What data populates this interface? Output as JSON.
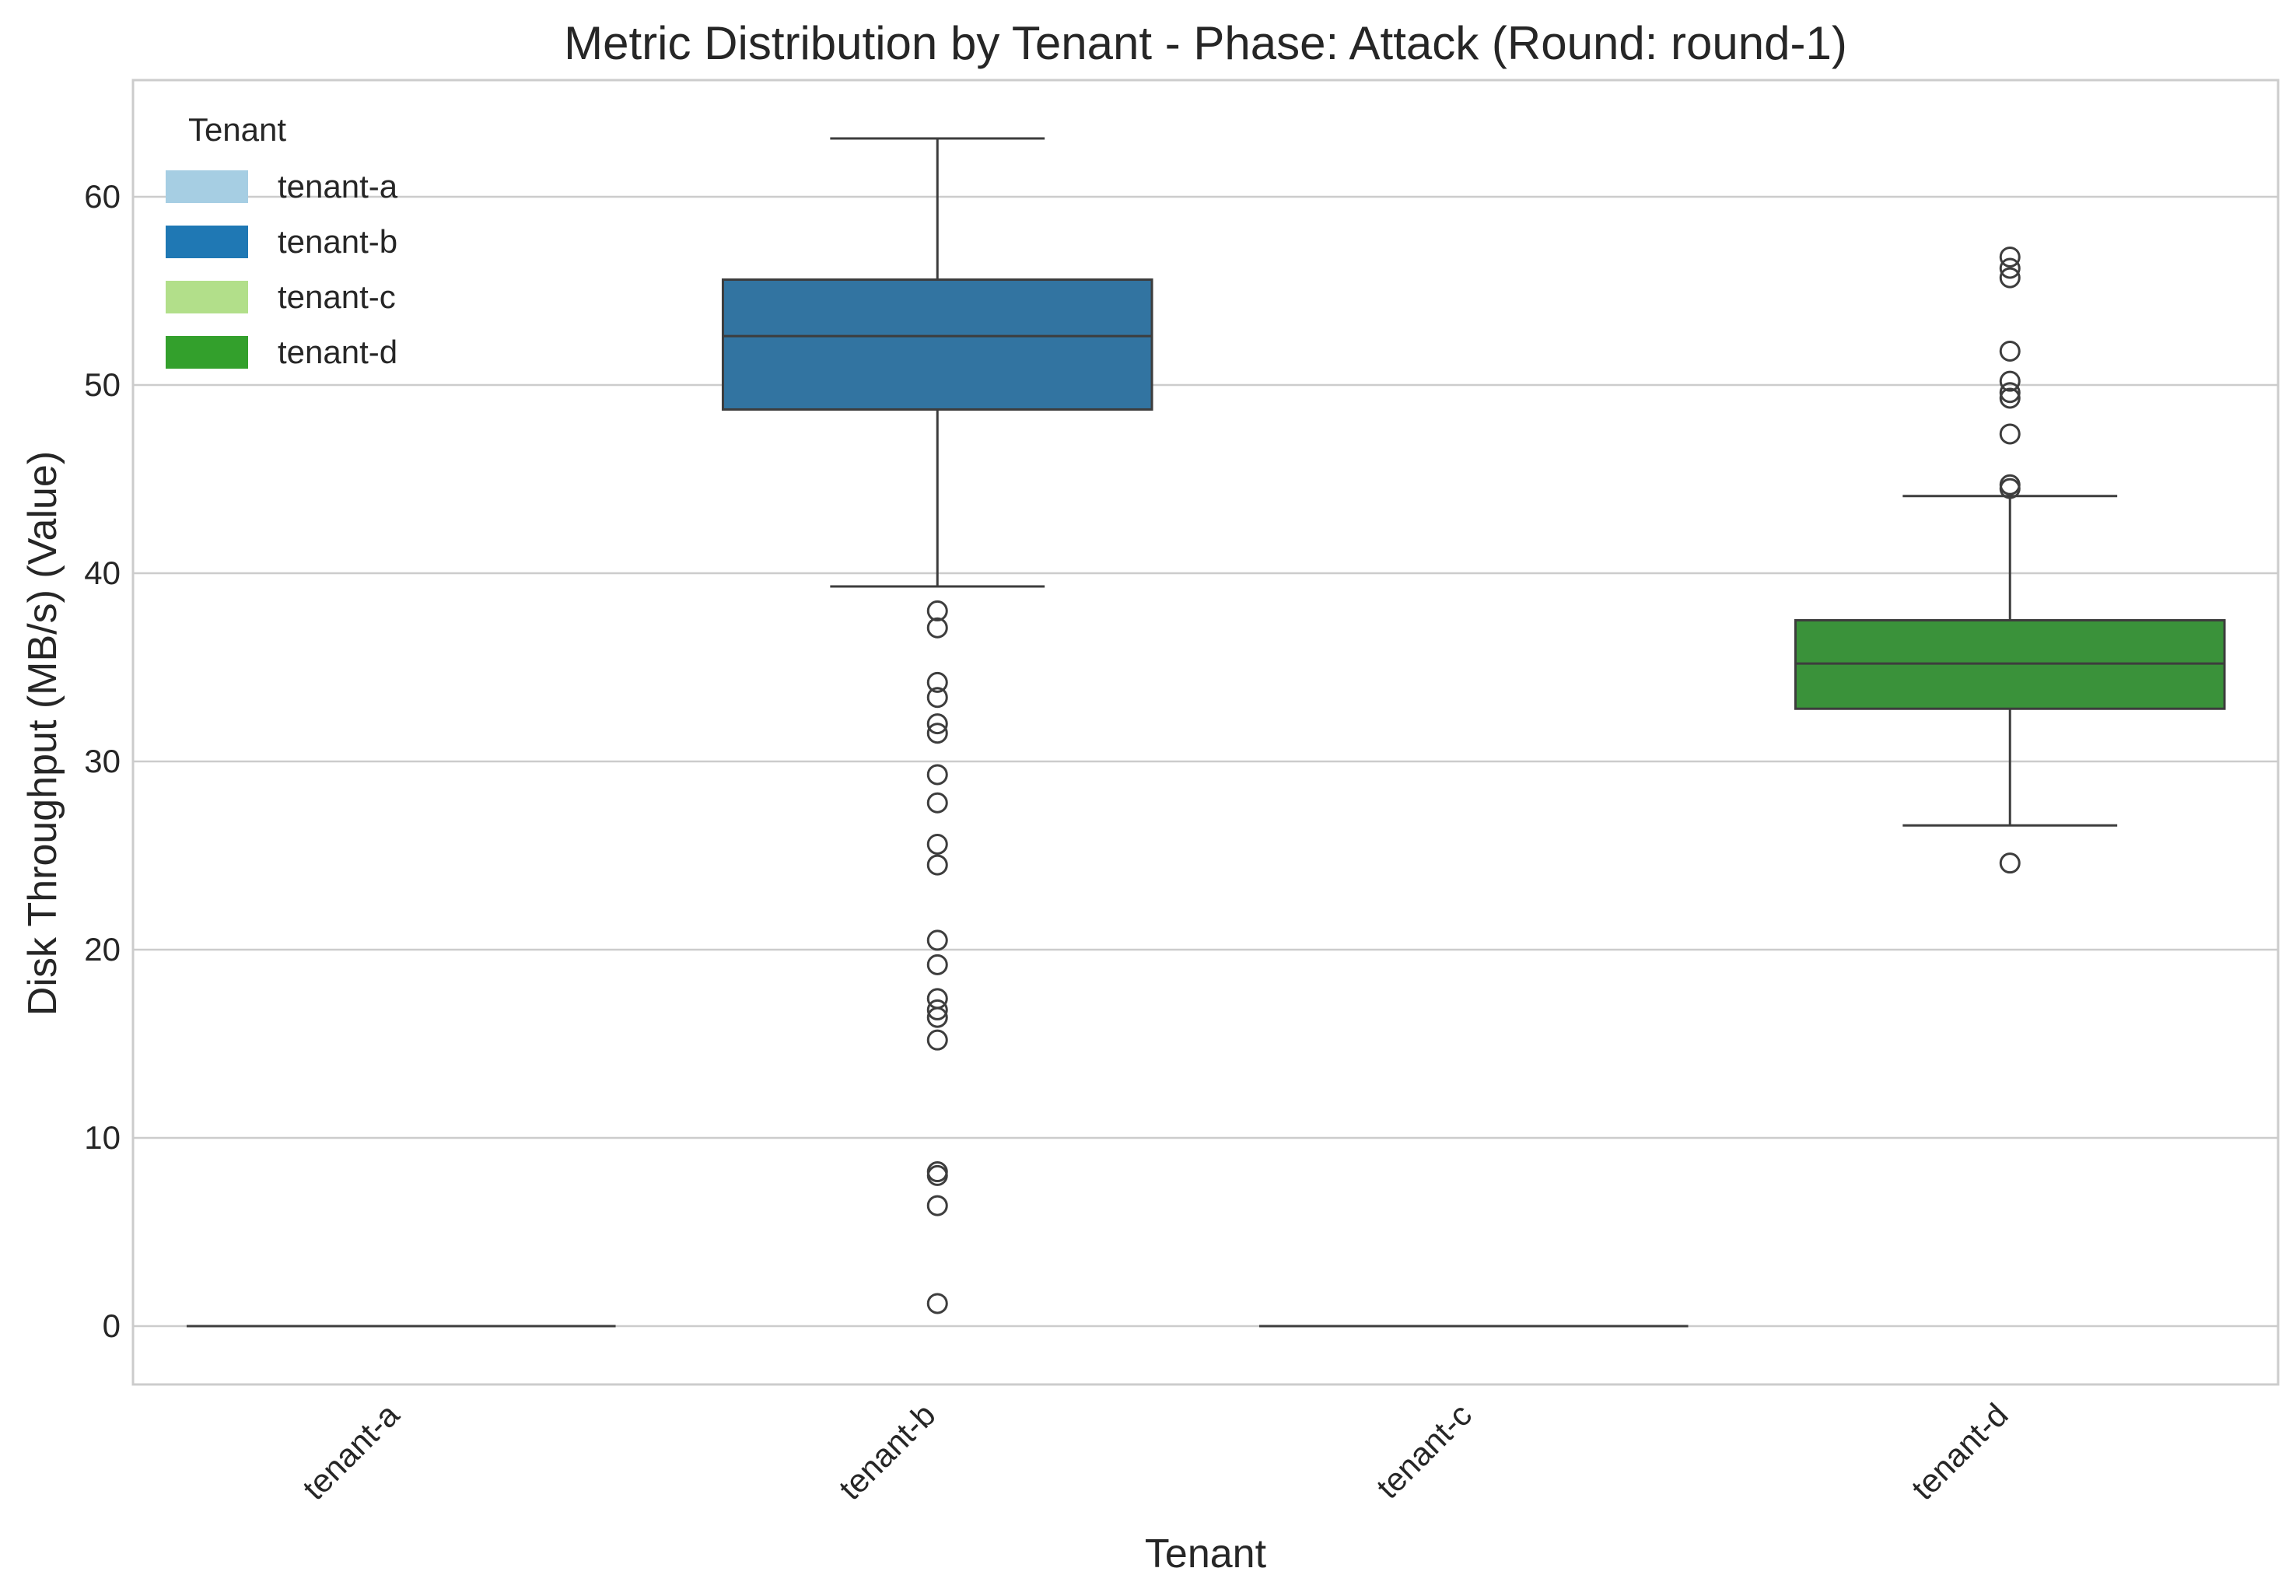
{
  "chart_data": {
    "type": "box",
    "title": "Metric Distribution by Tenant - Phase: Attack (Round: round-1)",
    "xlabel": "Tenant",
    "ylabel": "Disk Throughput (MB/s) (Value)",
    "ylim": [
      -3.1,
      66.2
    ],
    "yticks": [
      0,
      10,
      20,
      30,
      40,
      50,
      60
    ],
    "grid": true,
    "legend": {
      "title": "Tenant",
      "placement": "top-left"
    },
    "categories": [
      "tenant-a",
      "tenant-b",
      "tenant-c",
      "tenant-d"
    ],
    "series": [
      {
        "name": "tenant-a",
        "color": "#a6cee3",
        "box": {
          "whisker_low": 0,
          "q1": 0,
          "median": 0,
          "q3": 0,
          "whisker_high": 0
        },
        "outliers": []
      },
      {
        "name": "tenant-b",
        "color": "#1f78b4",
        "box_fill": "#3274a1",
        "box": {
          "whisker_low": 39.3,
          "q1": 48.7,
          "median": 52.6,
          "q3": 55.6,
          "whisker_high": 63.1
        },
        "outliers": [
          38.0,
          37.1,
          34.2,
          33.4,
          32.0,
          31.5,
          29.3,
          27.8,
          25.6,
          24.5,
          20.5,
          19.2,
          17.4,
          16.8,
          16.4,
          15.2,
          8.2,
          8.0,
          6.4,
          1.2
        ]
      },
      {
        "name": "tenant-c",
        "color": "#b2df8a",
        "box": {
          "whisker_low": 0,
          "q1": 0,
          "median": 0,
          "q3": 0,
          "whisker_high": 0
        },
        "outliers": []
      },
      {
        "name": "tenant-d",
        "color": "#33a02c",
        "box_fill": "#3a923a",
        "box": {
          "whisker_low": 26.6,
          "q1": 32.8,
          "median": 35.2,
          "q3": 37.5,
          "whisker_high": 44.1
        },
        "outliers": [
          24.6,
          44.5,
          44.7,
          47.4,
          49.3,
          49.6,
          50.2,
          51.8,
          55.7,
          56.2,
          56.8
        ]
      }
    ]
  }
}
